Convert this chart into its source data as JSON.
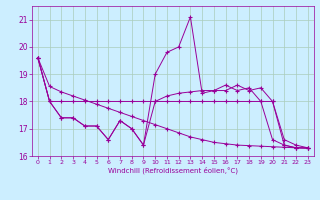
{
  "xlabel": "Windchill (Refroidissement éolien,°C)",
  "background_color": "#cceeff",
  "grid_color": "#aaccbb",
  "line_color": "#990099",
  "xlim": [
    -0.5,
    23.5
  ],
  "ylim": [
    16,
    21.5
  ],
  "yticks": [
    16,
    17,
    18,
    19,
    20,
    21
  ],
  "xticks": [
    0,
    1,
    2,
    3,
    4,
    5,
    6,
    7,
    8,
    9,
    10,
    11,
    12,
    13,
    14,
    15,
    16,
    17,
    18,
    19,
    20,
    21,
    22,
    23
  ],
  "s1": [
    19.6,
    18.0,
    17.4,
    17.4,
    17.1,
    17.1,
    16.6,
    17.3,
    17.0,
    16.4,
    19.0,
    19.8,
    20.0,
    21.1,
    18.3,
    18.4,
    18.4,
    18.6,
    18.4,
    18.5,
    18.0,
    16.6,
    16.4,
    16.3
  ],
  "s2": [
    19.6,
    18.0,
    18.0,
    18.0,
    18.0,
    18.0,
    18.0,
    18.0,
    18.0,
    18.0,
    18.0,
    18.0,
    18.0,
    18.0,
    18.0,
    18.0,
    18.0,
    18.0,
    18.0,
    18.0,
    18.0,
    16.4,
    16.3,
    16.3
  ],
  "s3": [
    19.6,
    18.55,
    18.35,
    18.2,
    18.05,
    17.9,
    17.75,
    17.6,
    17.45,
    17.3,
    17.15,
    17.0,
    16.85,
    16.7,
    16.6,
    16.5,
    16.45,
    16.4,
    16.38,
    16.36,
    16.34,
    16.32,
    16.3,
    16.28
  ],
  "s4": [
    19.6,
    18.0,
    17.4,
    17.4,
    17.1,
    17.1,
    16.6,
    17.3,
    17.0,
    16.4,
    18.0,
    18.2,
    18.3,
    18.35,
    18.4,
    18.4,
    18.6,
    18.4,
    18.5,
    18.0,
    16.6,
    16.4,
    16.3,
    16.3
  ]
}
